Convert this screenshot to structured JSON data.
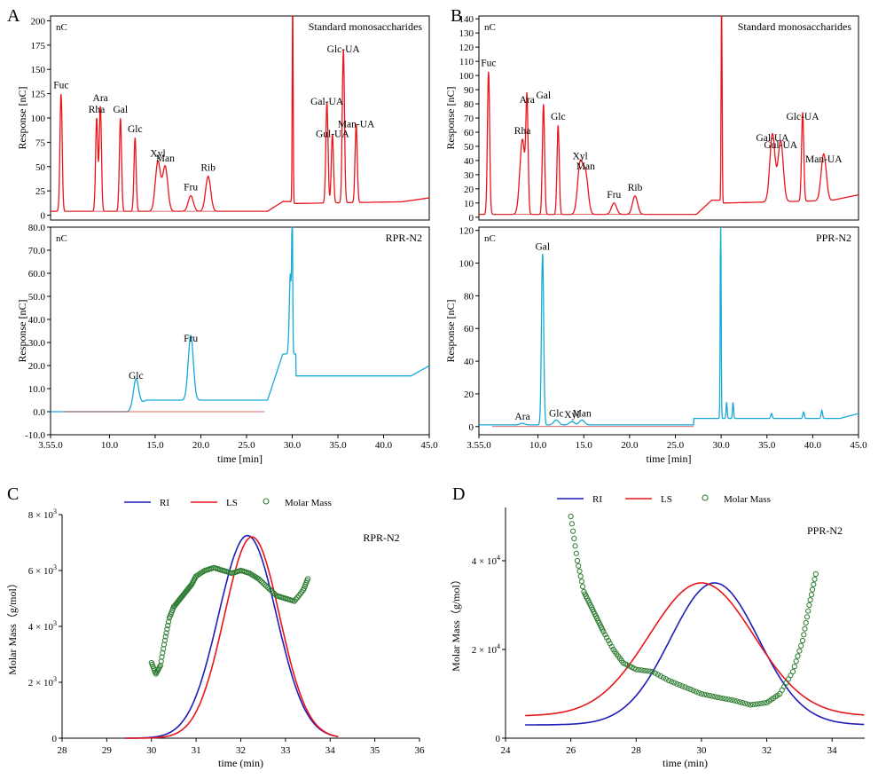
{
  "colors": {
    "red": "#e8151b",
    "cyan": "#16a9d8",
    "blue": "#1f1cb8",
    "green": "#2e7d32",
    "baseline": "#d23a3a",
    "marker": "#4a3ad0"
  },
  "chart_data": [
    {
      "panel": "A",
      "type": "line",
      "xlabel": "time  [min]",
      "xticks": [
        "3.55.0",
        "10.0",
        "15.0",
        "20.0",
        "25.0",
        "30.0",
        "35.0",
        "40.0",
        "45.0"
      ],
      "subplots": [
        {
          "title": "Standard monosaccharides",
          "unit": "nC",
          "ylabel": "Response [nC]",
          "yticks": [
            "0",
            "25",
            "50",
            "75",
            "100",
            "125",
            "150",
            "175",
            "200"
          ],
          "ylim": [
            -5,
            205
          ],
          "color": "red",
          "baseline_y": 4,
          "peaks": [
            {
              "label": "Fuc",
              "x": 4.7,
              "y": 125
            },
            {
              "label": "Rha",
              "x": 8.6,
              "y": 100
            },
            {
              "label": "Ara",
              "x": 9.0,
              "y": 112
            },
            {
              "label": "Gal",
              "x": 11.2,
              "y": 100
            },
            {
              "label": "Glc",
              "x": 12.8,
              "y": 80
            },
            {
              "label": "Xyl",
              "x": 15.3,
              "y": 55
            },
            {
              "label": "Man",
              "x": 16.1,
              "y": 50
            },
            {
              "label": "Fru",
              "x": 18.9,
              "y": 20
            },
            {
              "label": "Rib",
              "x": 20.8,
              "y": 40
            },
            {
              "label": "Gal-UA",
              "x": 33.8,
              "y": 108
            },
            {
              "label": "Gul-UA",
              "x": 34.4,
              "y": 75
            },
            {
              "label": "Glc-UA",
              "x": 35.6,
              "y": 162
            },
            {
              "label": "Man-UA",
              "x": 37.0,
              "y": 85
            }
          ]
        },
        {
          "title": "RPR-N2",
          "unit": "nC",
          "ylabel": "Response [nC]",
          "yticks": [
            "-10.0",
            "0.0",
            "10.0",
            "20.0",
            "30.0",
            "40.0",
            "50.0",
            "60.0",
            "70.0",
            "80.0"
          ],
          "ylim": [
            -10,
            80
          ],
          "color": "cyan",
          "peaks": [
            {
              "label": "Glc",
              "x": 12.9,
              "y": 12
            },
            {
              "label": "Fru",
              "x": 18.9,
              "y": 28
            }
          ]
        }
      ]
    },
    {
      "panel": "B",
      "type": "line",
      "xlabel": "time  [min]",
      "xticks": [
        "3.55.0",
        "10.0",
        "15.0",
        "20.0",
        "25.0",
        "30.0",
        "35.0",
        "40.0",
        "45.0"
      ],
      "subplots": [
        {
          "title": "Standard monosaccharides",
          "unit": "nC",
          "ylabel": "Response [nC]",
          "yticks": [
            "0",
            "10",
            "20",
            "30",
            "40",
            "50",
            "60",
            "70",
            "80",
            "90",
            "100",
            "110",
            "120",
            "130",
            "140"
          ],
          "ylim": [
            -2,
            142
          ],
          "color": "red",
          "baseline_y": 2,
          "peaks": [
            {
              "label": "Fuc",
              "x": 4.6,
              "y": 103
            },
            {
              "label": "Rha",
              "x": 8.3,
              "y": 55
            },
            {
              "label": "Ara",
              "x": 8.8,
              "y": 77
            },
            {
              "label": "Gal",
              "x": 10.6,
              "y": 80
            },
            {
              "label": "Glc",
              "x": 12.2,
              "y": 65
            },
            {
              "label": "Xyl",
              "x": 14.6,
              "y": 37
            },
            {
              "label": "Man",
              "x": 15.2,
              "y": 30
            },
            {
              "label": "Fru",
              "x": 18.3,
              "y": 10
            },
            {
              "label": "Rib",
              "x": 20.6,
              "y": 15
            },
            {
              "label": "Gal-UA",
              "x": 35.6,
              "y": 50
            },
            {
              "label": "Gul-UA",
              "x": 36.5,
              "y": 45
            },
            {
              "label": "Glc-UA",
              "x": 38.9,
              "y": 65
            },
            {
              "label": "Man-UA",
              "x": 41.2,
              "y": 35
            }
          ]
        },
        {
          "title": "PPR-N2",
          "unit": "nC",
          "ylabel": "Response [nC]",
          "yticks": [
            "0",
            "20",
            "40",
            "60",
            "80",
            "100",
            "120"
          ],
          "ylim": [
            -5,
            122
          ],
          "color": "cyan",
          "peaks": [
            {
              "label": "Ara",
              "x": 8.3,
              "y": 1
            },
            {
              "label": "Gal",
              "x": 10.5,
              "y": 105
            },
            {
              "label": "Glc",
              "x": 12.0,
              "y": 3
            },
            {
              "label": "Xyl",
              "x": 13.7,
              "y": 2
            },
            {
              "label": "Man",
              "x": 14.8,
              "y": 3
            }
          ]
        }
      ]
    },
    {
      "panel": "C",
      "type": "line",
      "title": "RPR-N2",
      "xlabel": "time (min)",
      "ylabel": "Molar Mass（g/mol）",
      "xlim": [
        28,
        36
      ],
      "xticks": [
        "28",
        "29",
        "30",
        "31",
        "32",
        "33",
        "34",
        "35",
        "36"
      ],
      "ylim": [
        0,
        8000
      ],
      "yticks": [
        {
          "value": 0,
          "label": "0"
        },
        {
          "value": 2000,
          "label": "2 × 10",
          "exp": "3"
        },
        {
          "value": 4000,
          "label": "4 × 10",
          "exp": "3"
        },
        {
          "value": 6000,
          "label": "6 × 10",
          "exp": "3"
        },
        {
          "value": 8000,
          "label": "8 × 10",
          "exp": "3"
        }
      ],
      "legend": [
        "RI",
        "LS",
        "Molar Mass"
      ],
      "legend_placement": "top",
      "series": [
        {
          "name": "RI",
          "color": "blue",
          "kind": "gauss",
          "start": 29.4,
          "end": 34.2,
          "center": 32.15,
          "sigma": 0.65,
          "peak": 7250,
          "offset": 0
        },
        {
          "name": "LS",
          "color": "red",
          "kind": "gauss",
          "start": 29.4,
          "end": 34.2,
          "center": 32.25,
          "sigma": 0.62,
          "peak": 7200,
          "offset": 0
        },
        {
          "name": "Molar Mass",
          "color": "green",
          "kind": "points",
          "x": [
            30.0,
            30.1,
            30.2,
            30.3,
            30.4,
            30.5,
            30.6,
            30.7,
            30.8,
            30.9,
            31.0,
            31.2,
            31.4,
            31.6,
            31.8,
            32.0,
            32.2,
            32.4,
            32.6,
            32.8,
            33.0,
            33.2,
            33.4,
            33.5
          ],
          "y": [
            2700,
            2300,
            2600,
            3500,
            4300,
            4700,
            4900,
            5100,
            5300,
            5500,
            5800,
            6000,
            6100,
            6000,
            5900,
            6000,
            5900,
            5700,
            5400,
            5100,
            5000,
            4900,
            5300,
            5700
          ]
        }
      ]
    },
    {
      "panel": "D",
      "type": "line",
      "title": "PPR-N2",
      "xlabel": "time (min)",
      "ylabel": "Molar Mass（g/mol）",
      "xlim": [
        24,
        35
      ],
      "xticks": [
        "24",
        "26",
        "28",
        "30",
        "32",
        "34"
      ],
      "ylim": [
        0,
        52000
      ],
      "yticks": [
        {
          "value": 0,
          "label": "0"
        },
        {
          "value": 20000,
          "label": "2 × 10",
          "exp": "4"
        },
        {
          "value": 40000,
          "label": "4 × 10",
          "exp": "4"
        }
      ],
      "legend": [
        "RI",
        "LS",
        "Molar Mass"
      ],
      "legend_placement": "top",
      "series": [
        {
          "name": "RI",
          "color": "blue",
          "kind": "gauss",
          "start": 24.6,
          "end": 35.0,
          "center": 30.4,
          "sigma": 1.35,
          "peak": 35000,
          "offset": 3000
        },
        {
          "name": "LS",
          "color": "red",
          "kind": "gauss",
          "start": 24.6,
          "end": 35.0,
          "center": 30.0,
          "sigma": 1.6,
          "peak": 35000,
          "offset": 5000
        },
        {
          "name": "Molar Mass",
          "color": "green",
          "kind": "points",
          "x": [
            26.0,
            26.2,
            26.4,
            26.6,
            26.8,
            27.0,
            27.3,
            27.6,
            28.0,
            28.5,
            29.0,
            29.5,
            30.0,
            30.5,
            31.0,
            31.5,
            32.0,
            32.4,
            32.8,
            33.1,
            33.3,
            33.5
          ],
          "y": [
            50000,
            40000,
            33000,
            30000,
            27000,
            24000,
            20000,
            17000,
            15500,
            15000,
            13000,
            11500,
            10000,
            9200,
            8500,
            7500,
            8000,
            10000,
            15000,
            22000,
            30000,
            37000
          ]
        }
      ]
    }
  ]
}
